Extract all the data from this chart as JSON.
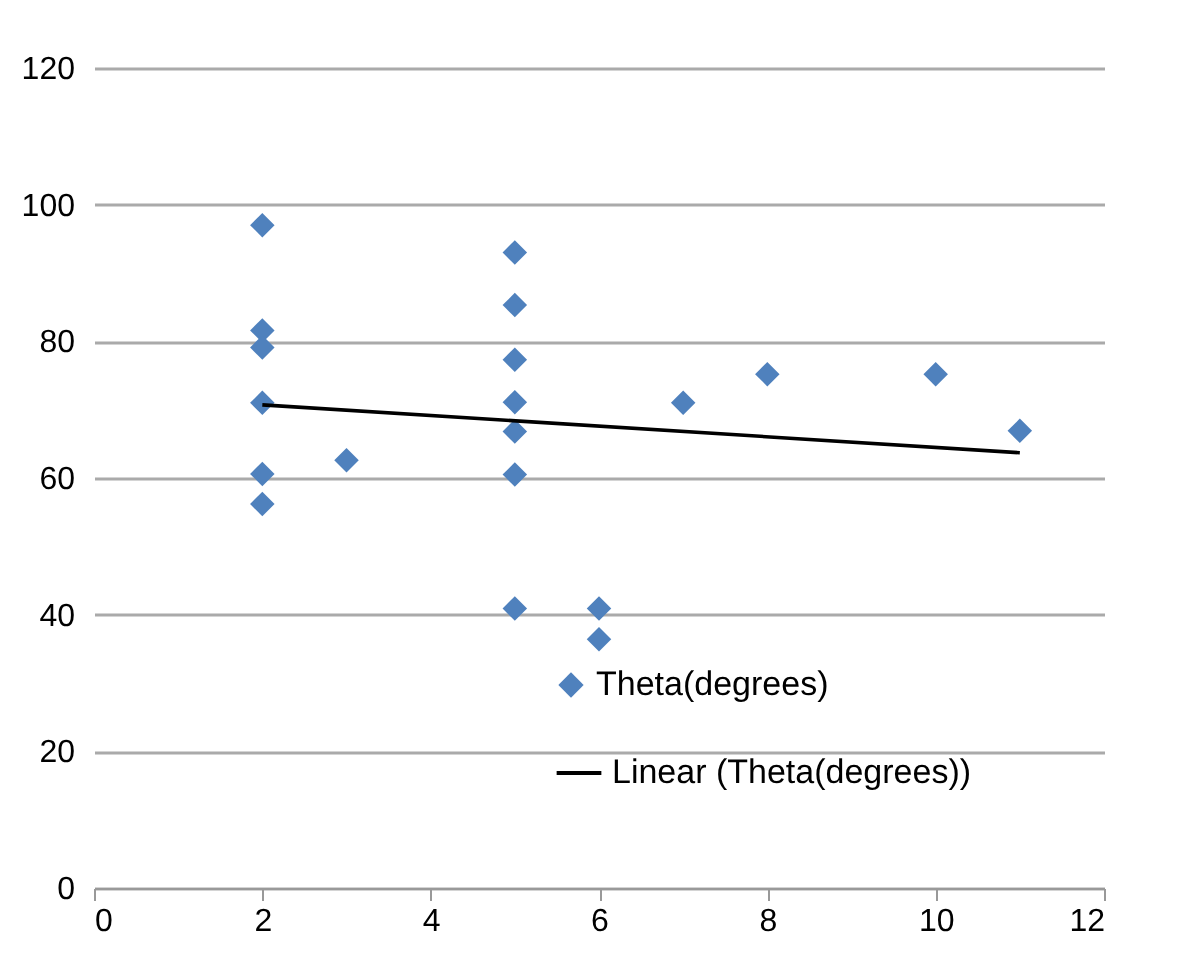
{
  "chart_data": {
    "type": "scatter",
    "xlim": [
      0,
      12
    ],
    "xticks": [
      0,
      2,
      4,
      6,
      8,
      10,
      12
    ],
    "ylim": [
      0,
      120
    ],
    "yticks": [
      0,
      20,
      40,
      60,
      80,
      100,
      120
    ],
    "grid": "y",
    "legend": "bottom",
    "series": [
      {
        "name": "Theta(degrees)",
        "type": "scatter",
        "color": "#4f81bd",
        "marker": "diamond",
        "x": [
          2,
          2,
          2,
          2,
          2,
          2,
          3,
          5,
          5,
          5,
          5,
          5,
          5,
          5,
          6,
          6,
          7,
          8,
          10,
          11
        ],
        "values": [
          97,
          81.6,
          79.1,
          71,
          60.6,
          56.2,
          62.6,
          93,
          85.3,
          77.3,
          71.1,
          66.8,
          60.5,
          40.9,
          40.9,
          36.4,
          71,
          75.2,
          75.2,
          66.9
        ]
      },
      {
        "name": "Linear (Theta(degrees))",
        "type": "line",
        "color": "#000000",
        "line_style": "solid",
        "x": [
          2,
          11
        ],
        "values": [
          70.7,
          63.7
        ]
      }
    ]
  }
}
